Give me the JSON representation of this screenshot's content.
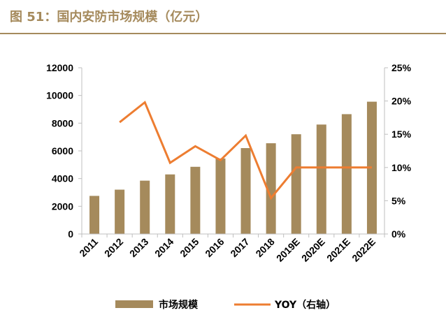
{
  "figure": {
    "title": "图 51：国内安防市场规模（亿元）"
  },
  "chart_data": {
    "type": "bar",
    "categories": [
      "2011",
      "2012",
      "2013",
      "2014",
      "2015",
      "2016",
      "2017",
      "2018",
      "2019E",
      "2020E",
      "2021E",
      "2022E"
    ],
    "series": [
      {
        "name": "市场规模",
        "type": "bar",
        "axis": "left",
        "color": "#a58a5c",
        "values": [
          2750,
          3200,
          3850,
          4300,
          4850,
          5450,
          6200,
          6550,
          7200,
          7900,
          8650,
          9550
        ]
      },
      {
        "name": "YOY（右轴）",
        "type": "line",
        "axis": "right",
        "color": "#ed7d31",
        "values": [
          null,
          16.8,
          19.8,
          10.7,
          13.2,
          11.1,
          14.8,
          5.4,
          10.0,
          10.0,
          10.0,
          10.0
        ]
      }
    ],
    "y_left": {
      "min": 0,
      "max": 12000,
      "ticks": [
        0,
        2000,
        4000,
        6000,
        8000,
        10000,
        12000
      ],
      "tick_labels": [
        "0",
        "2000",
        "4000",
        "6000",
        "8000",
        "10000",
        "12000"
      ]
    },
    "y_right": {
      "min": 0,
      "max": 25,
      "ticks": [
        0,
        5,
        10,
        15,
        20,
        25
      ],
      "tick_labels": [
        "0%",
        "5%",
        "10%",
        "15%",
        "20%",
        "25%"
      ]
    },
    "grid": false,
    "legend_position": "bottom"
  }
}
